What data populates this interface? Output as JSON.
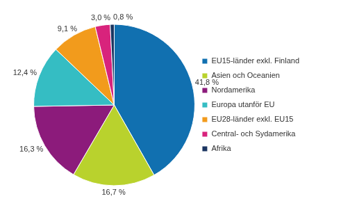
{
  "chart_data": {
    "type": "pie",
    "categories": [
      "EU15-länder exkl. Finland",
      "Asien och Oceanien",
      "Nordamerika",
      "Europa utanför EU",
      "EU28-länder exkl. EU15",
      "Central- och Sydamerika",
      "Afrika"
    ],
    "values": [
      41.8,
      16.7,
      16.3,
      12.4,
      9.1,
      3.0,
      0.8
    ],
    "value_labels": [
      "41,8 %",
      "16,7 %",
      "16,3 %",
      "12,4 %",
      "9,1 %",
      "3,0 %",
      "0,8 %"
    ],
    "colors": [
      "#1170b0",
      "#b9d22d",
      "#8c1b7b",
      "#35bdc3",
      "#f29b1c",
      "#d8237c",
      "#1b3561"
    ],
    "data_labels": true,
    "legend": "right"
  }
}
